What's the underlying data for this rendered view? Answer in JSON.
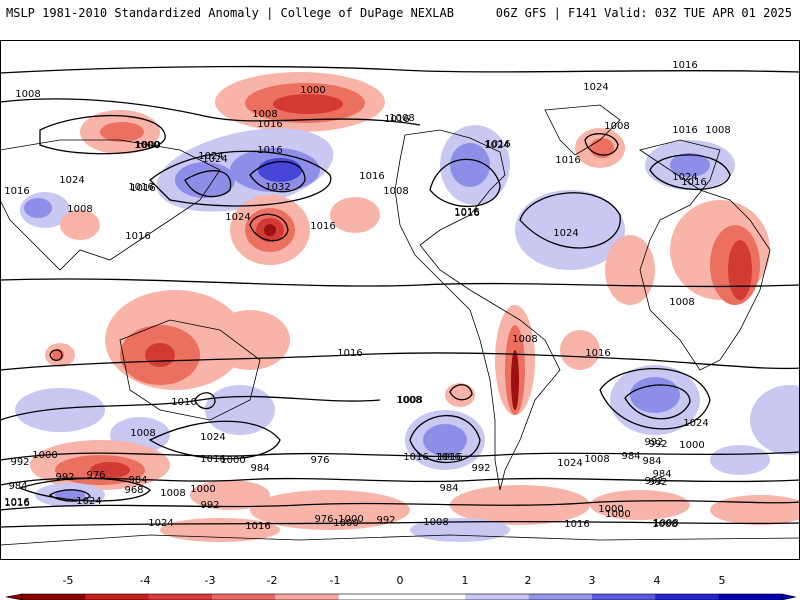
{
  "header": {
    "left": "MSLP 1981-2010 Standardized Anomaly | College of DuPage NEXLAB",
    "right": "06Z GFS | F141 Valid: 03Z TUE APR 01 2025"
  },
  "colorbar": {
    "ticks": [
      "-5",
      "-4",
      "-3",
      "-2",
      "-1",
      "0",
      "1",
      "2",
      "3",
      "4",
      "5"
    ],
    "colors": [
      "#8b0000",
      "#c81e1e",
      "#dc3c3c",
      "#ee6a6a",
      "#f7a8a0",
      "#ffffff",
      "#ffffff",
      "#c8c8f4",
      "#9696ec",
      "#5a5ae0",
      "#2323d2",
      "#0000b4"
    ]
  },
  "map": {
    "colors": {
      "neg_light": "#f8b4a8",
      "neg_mid": "#ec7060",
      "neg_dark": "#d23a34",
      "neg_deep": "#9b1010",
      "pos_light": "#c8c8f2",
      "pos_mid": "#8e8ee8",
      "pos_dark": "#4646d8"
    },
    "isobar_labels": [
      "1016",
      "1008",
      "1000",
      "1024",
      "1016",
      "1008",
      "1016",
      "1000",
      "1016",
      "1024",
      "1032",
      "1024",
      "1016",
      "1016",
      "1016",
      "1008",
      "1016",
      "1024",
      "1016",
      "1024",
      "1008",
      "1024",
      "1016",
      "1008",
      "1016",
      "1016",
      "1016",
      "1016",
      "1008",
      "1016",
      "1024",
      "1016",
      "1024",
      "1000",
      "1008",
      "1008",
      "1016",
      "1008",
      "976",
      "984",
      "968",
      "1000",
      "992",
      "992",
      "984",
      "1008",
      "1024",
      "1016",
      "1000",
      "1016",
      "1008",
      "984",
      "976",
      "992",
      "1000",
      "1016",
      "984",
      "984",
      "992",
      "992",
      "1000",
      "984",
      "992",
      "1000",
      "1008",
      "1024",
      "1016",
      "976",
      "992",
      "1000",
      "1008",
      "1016",
      "1000",
      "1008",
      "1016",
      "1016",
      "1024",
      "1008",
      "1016",
      "1024",
      "1008",
      "1016",
      "1016",
      "1024",
      "992",
      "1000",
      "1008",
      "984",
      "992"
    ]
  }
}
